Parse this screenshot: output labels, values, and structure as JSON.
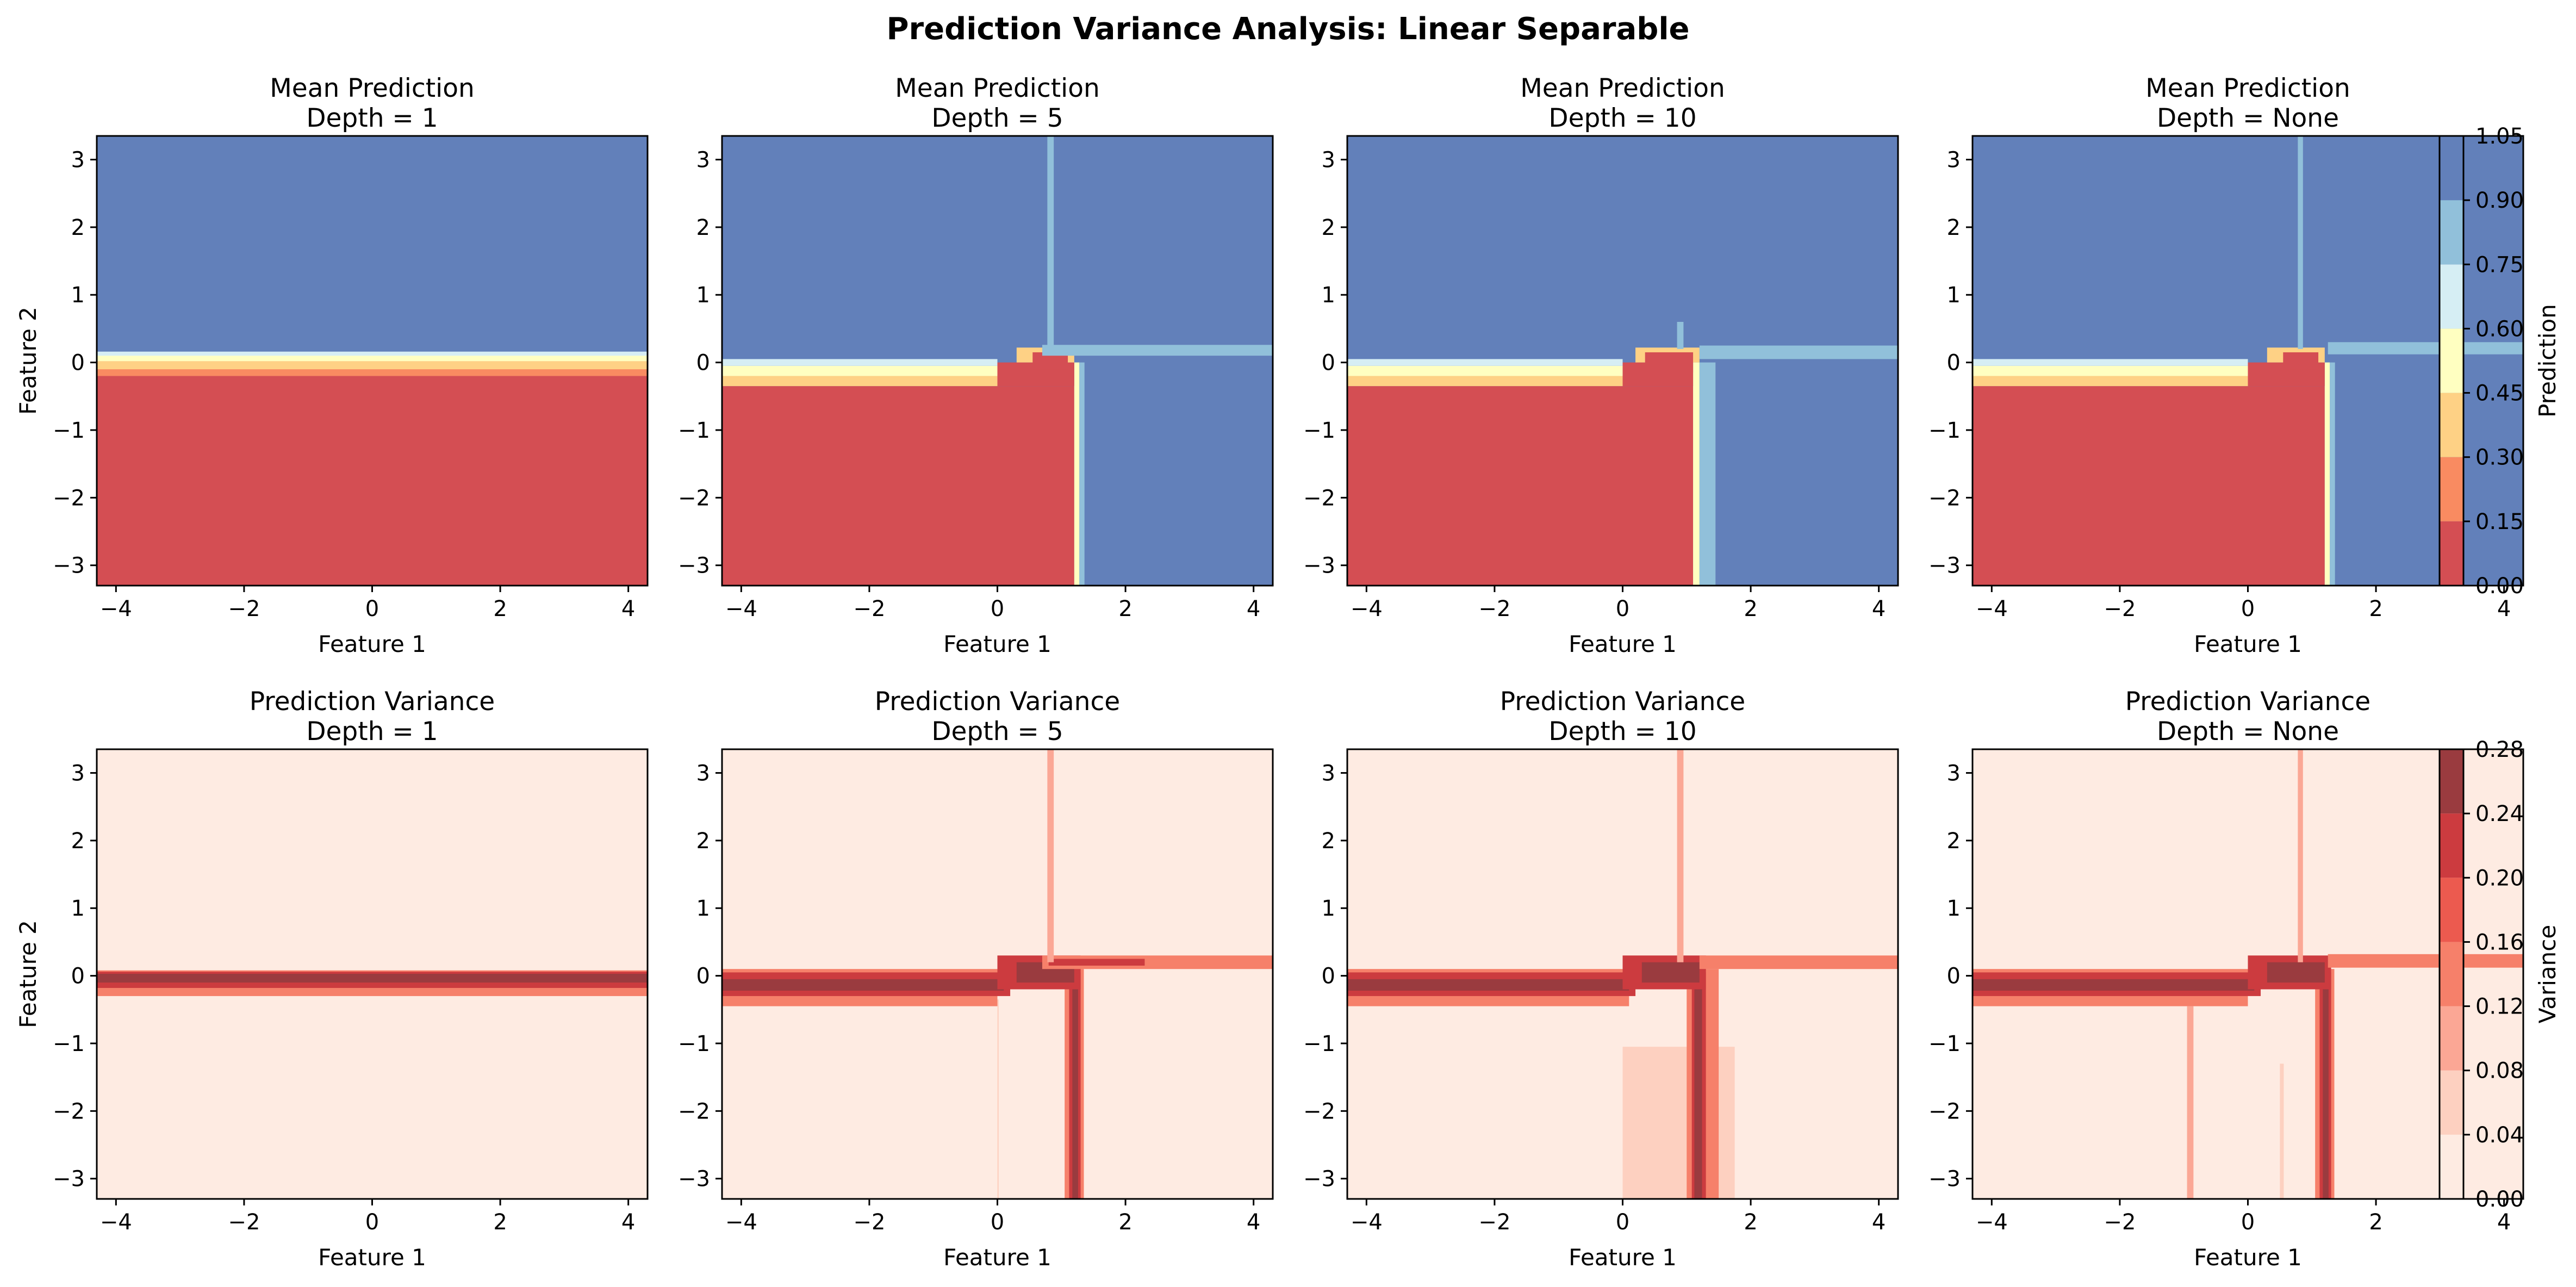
{
  "figure": {
    "title": "Prediction Variance Analysis: Linear Separable"
  },
  "chart_data": [
    {
      "type": "heatmap",
      "title": "Mean Prediction\nDepth = 1",
      "xlabel": "Feature 1",
      "ylabel": "Feature 2",
      "xlim": [
        -4.3,
        4.3
      ],
      "ylim": [
        -3.3,
        3.35
      ],
      "xticks": [
        -4,
        -2,
        0,
        2,
        4
      ],
      "yticks": [
        -3,
        -2,
        -1,
        0,
        1,
        2,
        3
      ],
      "regions": [
        {
          "x0": -4.3,
          "x1": 4.3,
          "y0": -3.3,
          "y1": -0.2,
          "value": 0.0
        },
        {
          "x0": -4.3,
          "x1": 4.3,
          "y0": -0.2,
          "y1": -0.1,
          "value": 0.2
        },
        {
          "x0": -4.3,
          "x1": 4.3,
          "y0": -0.1,
          "y1": 0.02,
          "value": 0.35
        },
        {
          "x0": -4.3,
          "x1": 4.3,
          "y0": 0.02,
          "y1": 0.1,
          "value": 0.5
        },
        {
          "x0": -4.3,
          "x1": 4.3,
          "y0": 0.1,
          "y1": 0.16,
          "value": 0.65
        },
        {
          "x0": -4.3,
          "x1": 4.3,
          "y0": 0.16,
          "y1": 3.35,
          "value": 1.0
        }
      ]
    },
    {
      "type": "heatmap",
      "title": "Mean Prediction\nDepth = 5",
      "xlabel": "Feature 1",
      "ylabel": "",
      "xlim": [
        -4.3,
        4.3
      ],
      "ylim": [
        -3.3,
        3.35
      ],
      "xticks": [
        -4,
        -2,
        0,
        2,
        4
      ],
      "yticks": [
        -3,
        -2,
        -1,
        0,
        1,
        2,
        3
      ],
      "regions": [
        {
          "x0": -4.3,
          "x1": 4.3,
          "y0": -3.3,
          "y1": 3.35,
          "value": 1.0
        },
        {
          "x0": -4.3,
          "x1": 1.2,
          "y0": -3.3,
          "y1": -0.35,
          "value": 0.0
        },
        {
          "x0": -4.3,
          "x1": 0.0,
          "y0": -0.35,
          "y1": -0.2,
          "value": 0.35
        },
        {
          "x0": -4.3,
          "x1": 0.0,
          "y0": -0.2,
          "y1": -0.05,
          "value": 0.55
        },
        {
          "x0": -4.3,
          "x1": 0.0,
          "y0": -0.05,
          "y1": 0.05,
          "value": 0.7
        },
        {
          "x0": 1.2,
          "x1": 1.28,
          "y0": -3.3,
          "y1": 0.0,
          "value": 0.5
        },
        {
          "x0": 1.28,
          "x1": 1.36,
          "y0": -3.3,
          "y1": 0.0,
          "value": 0.75
        },
        {
          "x0": 0.0,
          "x1": 1.2,
          "y0": -0.35,
          "y1": 0.0,
          "value": 0.0
        },
        {
          "x0": 0.3,
          "x1": 1.2,
          "y0": 0.0,
          "y1": 0.22,
          "value": 0.35
        },
        {
          "x0": 0.55,
          "x1": 1.1,
          "y0": -0.1,
          "y1": 0.15,
          "value": 0.05
        },
        {
          "x0": 0.7,
          "x1": 4.3,
          "y0": 0.1,
          "y1": 0.26,
          "value": 0.8
        },
        {
          "x0": 0.78,
          "x1": 0.88,
          "y0": 0.2,
          "y1": 3.35,
          "value": 0.82
        }
      ]
    },
    {
      "type": "heatmap",
      "title": "Mean Prediction\nDepth = 10",
      "xlabel": "Feature 1",
      "ylabel": "",
      "xlim": [
        -4.3,
        4.3
      ],
      "ylim": [
        -3.3,
        3.35
      ],
      "xticks": [
        -4,
        -2,
        0,
        2,
        4
      ],
      "yticks": [
        -3,
        -2,
        -1,
        0,
        1,
        2,
        3
      ],
      "regions": [
        {
          "x0": -4.3,
          "x1": 4.3,
          "y0": -3.3,
          "y1": 3.35,
          "value": 1.0
        },
        {
          "x0": -4.3,
          "x1": 1.1,
          "y0": -3.3,
          "y1": -0.35,
          "value": 0.0
        },
        {
          "x0": -4.3,
          "x1": 0.0,
          "y0": -0.35,
          "y1": -0.2,
          "value": 0.35
        },
        {
          "x0": -4.3,
          "x1": 0.0,
          "y0": -0.2,
          "y1": -0.05,
          "value": 0.55
        },
        {
          "x0": -4.3,
          "x1": 0.0,
          "y0": -0.05,
          "y1": 0.05,
          "value": 0.7
        },
        {
          "x0": 1.1,
          "x1": 1.2,
          "y0": -3.3,
          "y1": 0.0,
          "value": 0.5
        },
        {
          "x0": 1.2,
          "x1": 1.45,
          "y0": -3.3,
          "y1": 0.0,
          "value": 0.78
        },
        {
          "x0": 0.0,
          "x1": 1.1,
          "y0": -0.35,
          "y1": 0.0,
          "value": 0.0
        },
        {
          "x0": 0.2,
          "x1": 1.2,
          "y0": 0.0,
          "y1": 0.22,
          "value": 0.35
        },
        {
          "x0": 0.35,
          "x1": 1.1,
          "y0": -0.15,
          "y1": 0.15,
          "value": 0.05
        },
        {
          "x0": 1.2,
          "x1": 4.3,
          "y0": 0.05,
          "y1": 0.25,
          "value": 0.8
        },
        {
          "x0": 0.85,
          "x1": 0.95,
          "y0": 0.2,
          "y1": 0.6,
          "value": 0.82
        }
      ]
    },
    {
      "type": "heatmap",
      "title": "Mean Prediction\nDepth = None",
      "xlabel": "Feature 1",
      "ylabel": "",
      "xlim": [
        -4.3,
        4.3
      ],
      "ylim": [
        -3.3,
        3.35
      ],
      "xticks": [
        -4,
        -2,
        0,
        2,
        4
      ],
      "yticks": [
        -3,
        -2,
        -1,
        0,
        1,
        2,
        3
      ],
      "regions": [
        {
          "x0": -4.3,
          "x1": 4.3,
          "y0": -3.3,
          "y1": 3.35,
          "value": 1.0
        },
        {
          "x0": -4.3,
          "x1": 1.2,
          "y0": -3.3,
          "y1": -0.35,
          "value": 0.0
        },
        {
          "x0": -4.3,
          "x1": 0.0,
          "y0": -0.35,
          "y1": -0.2,
          "value": 0.35
        },
        {
          "x0": -4.3,
          "x1": 0.0,
          "y0": -0.2,
          "y1": -0.05,
          "value": 0.55
        },
        {
          "x0": -4.3,
          "x1": 0.0,
          "y0": -0.05,
          "y1": 0.05,
          "value": 0.7
        },
        {
          "x0": 1.2,
          "x1": 1.28,
          "y0": -3.3,
          "y1": 0.0,
          "value": 0.5
        },
        {
          "x0": 1.28,
          "x1": 1.36,
          "y0": -3.3,
          "y1": 0.0,
          "value": 0.75
        },
        {
          "x0": 0.0,
          "x1": 1.2,
          "y0": -0.35,
          "y1": 0.0,
          "value": 0.0
        },
        {
          "x0": 0.3,
          "x1": 1.2,
          "y0": 0.0,
          "y1": 0.22,
          "value": 0.35
        },
        {
          "x0": 0.55,
          "x1": 1.1,
          "y0": -0.1,
          "y1": 0.15,
          "value": 0.05
        },
        {
          "x0": 1.25,
          "x1": 4.3,
          "y0": 0.12,
          "y1": 0.3,
          "value": 0.8
        },
        {
          "x0": 0.78,
          "x1": 0.86,
          "y0": 0.2,
          "y1": 3.35,
          "value": 0.82
        }
      ]
    },
    {
      "type": "heatmap",
      "title": "Prediction Variance\nDepth = 1",
      "xlabel": "Feature 1",
      "ylabel": "Feature 2",
      "xlim": [
        -4.3,
        4.3
      ],
      "ylim": [
        -3.3,
        3.35
      ],
      "xticks": [
        -4,
        -2,
        0,
        2,
        4
      ],
      "yticks": [
        -3,
        -2,
        -1,
        0,
        1,
        2,
        3
      ],
      "regions": [
        {
          "x0": -4.3,
          "x1": 4.3,
          "y0": -3.3,
          "y1": 3.35,
          "value": 0.0
        },
        {
          "x0": -4.3,
          "x1": 4.3,
          "y0": -0.3,
          "y1": 0.08,
          "value": 0.13
        },
        {
          "x0": -4.3,
          "x1": 4.3,
          "y0": -0.18,
          "y1": 0.06,
          "value": 0.21
        },
        {
          "x0": -4.3,
          "x1": 4.3,
          "y0": -0.1,
          "y1": 0.03,
          "value": 0.25
        }
      ]
    },
    {
      "type": "heatmap",
      "title": "Prediction Variance\nDepth = 5",
      "xlabel": "Feature 1",
      "ylabel": "",
      "xlim": [
        -4.3,
        4.3
      ],
      "ylim": [
        -3.3,
        3.35
      ],
      "xticks": [
        -4,
        -2,
        0,
        2,
        4
      ],
      "yticks": [
        -3,
        -2,
        -1,
        0,
        1,
        2,
        3
      ],
      "regions": [
        {
          "x0": -4.3,
          "x1": 4.3,
          "y0": -3.3,
          "y1": 3.35,
          "value": 0.0
        },
        {
          "x0": -4.3,
          "x1": 0.0,
          "y0": -0.45,
          "y1": 0.1,
          "value": 0.13
        },
        {
          "x0": -4.3,
          "x1": 0.2,
          "y0": -0.3,
          "y1": 0.05,
          "value": 0.21
        },
        {
          "x0": -4.3,
          "x1": 0.1,
          "y0": -0.22,
          "y1": -0.05,
          "value": 0.25
        },
        {
          "x0": 1.05,
          "x1": 1.35,
          "y0": -3.3,
          "y1": 0.1,
          "value": 0.13
        },
        {
          "x0": 1.12,
          "x1": 1.3,
          "y0": -3.3,
          "y1": 0.05,
          "value": 0.21
        },
        {
          "x0": 1.17,
          "x1": 1.26,
          "y0": -3.3,
          "y1": 0.0,
          "value": 0.25
        },
        {
          "x0": 0.0,
          "x1": 1.3,
          "y0": -0.2,
          "y1": 0.3,
          "value": 0.21
        },
        {
          "x0": 0.3,
          "x1": 1.2,
          "y0": -0.1,
          "y1": 0.2,
          "value": 0.25
        },
        {
          "x0": 0.7,
          "x1": 4.3,
          "y0": 0.1,
          "y1": 0.3,
          "value": 0.13
        },
        {
          "x0": 0.8,
          "x1": 2.3,
          "y0": 0.15,
          "y1": 0.25,
          "value": 0.21
        },
        {
          "x0": 0.78,
          "x1": 0.88,
          "y0": 0.2,
          "y1": 3.35,
          "value": 0.1
        },
        {
          "x0": 0.0,
          "x1": 0.02,
          "y0": -3.3,
          "y1": -0.35,
          "value": 0.05
        }
      ]
    },
    {
      "type": "heatmap",
      "title": "Prediction Variance\nDepth = 10",
      "xlabel": "Feature 1",
      "ylabel": "",
      "xlim": [
        -4.3,
        4.3
      ],
      "ylim": [
        -3.3,
        3.35
      ],
      "xticks": [
        -4,
        -2,
        0,
        2,
        4
      ],
      "yticks": [
        -3,
        -2,
        -1,
        0,
        1,
        2,
        3
      ],
      "regions": [
        {
          "x0": -4.3,
          "x1": 4.3,
          "y0": -3.3,
          "y1": 3.35,
          "value": 0.0
        },
        {
          "x0": -4.3,
          "x1": -0.95,
          "y0": -0.75,
          "y1": -0.3,
          "value": 0.03
        },
        {
          "x0": 0.0,
          "x1": 1.75,
          "y0": -3.3,
          "y1": -1.05,
          "value": 0.05
        },
        {
          "x0": -4.3,
          "x1": 0.1,
          "y0": -0.45,
          "y1": 0.1,
          "value": 0.13
        },
        {
          "x0": -4.3,
          "x1": 0.2,
          "y0": -0.3,
          "y1": 0.05,
          "value": 0.21
        },
        {
          "x0": -4.3,
          "x1": 0.1,
          "y0": -0.22,
          "y1": -0.05,
          "value": 0.25
        },
        {
          "x0": 1.0,
          "x1": 1.5,
          "y0": -3.3,
          "y1": 0.1,
          "value": 0.13
        },
        {
          "x0": 1.08,
          "x1": 1.3,
          "y0": -3.3,
          "y1": 0.05,
          "value": 0.21
        },
        {
          "x0": 1.12,
          "x1": 1.24,
          "y0": -3.3,
          "y1": 0.0,
          "value": 0.25
        },
        {
          "x0": 0.0,
          "x1": 1.3,
          "y0": -0.2,
          "y1": 0.3,
          "value": 0.21
        },
        {
          "x0": 0.3,
          "x1": 1.2,
          "y0": -0.1,
          "y1": 0.2,
          "value": 0.25
        },
        {
          "x0": 1.2,
          "x1": 4.3,
          "y0": 0.1,
          "y1": 0.3,
          "value": 0.13
        },
        {
          "x0": 0.85,
          "x1": 0.95,
          "y0": 0.2,
          "y1": 3.35,
          "value": 0.1
        }
      ]
    },
    {
      "type": "heatmap",
      "title": "Prediction Variance\nDepth = None",
      "xlabel": "Feature 1",
      "ylabel": "",
      "xlim": [
        -4.3,
        4.3
      ],
      "ylim": [
        -3.3,
        3.35
      ],
      "xticks": [
        -4,
        -2,
        0,
        2,
        4
      ],
      "yticks": [
        -3,
        -2,
        -1,
        0,
        1,
        2,
        3
      ],
      "regions": [
        {
          "x0": -4.3,
          "x1": 4.3,
          "y0": -3.3,
          "y1": 3.35,
          "value": 0.0
        },
        {
          "x0": -4.3,
          "x1": 0.0,
          "y0": -0.45,
          "y1": 0.1,
          "value": 0.13
        },
        {
          "x0": -4.3,
          "x1": 0.2,
          "y0": -0.3,
          "y1": 0.05,
          "value": 0.21
        },
        {
          "x0": -4.3,
          "x1": 0.1,
          "y0": -0.22,
          "y1": -0.05,
          "value": 0.25
        },
        {
          "x0": 1.05,
          "x1": 1.35,
          "y0": -3.3,
          "y1": 0.1,
          "value": 0.13
        },
        {
          "x0": 1.12,
          "x1": 1.3,
          "y0": -3.3,
          "y1": 0.05,
          "value": 0.21
        },
        {
          "x0": 1.17,
          "x1": 1.26,
          "y0": -3.3,
          "y1": 0.0,
          "value": 0.25
        },
        {
          "x0": 0.0,
          "x1": 1.3,
          "y0": -0.2,
          "y1": 0.3,
          "value": 0.21
        },
        {
          "x0": 0.3,
          "x1": 1.2,
          "y0": -0.1,
          "y1": 0.2,
          "value": 0.25
        },
        {
          "x0": 1.25,
          "x1": 4.3,
          "y0": 0.12,
          "y1": 0.32,
          "value": 0.13
        },
        {
          "x0": 0.78,
          "x1": 0.86,
          "y0": 0.2,
          "y1": 3.35,
          "value": 0.1
        },
        {
          "x0": -0.95,
          "x1": -0.85,
          "y0": -3.3,
          "y1": -0.45,
          "value": 0.1
        },
        {
          "x0": 0.5,
          "x1": 0.56,
          "y0": -3.3,
          "y1": -1.3,
          "value": 0.05
        }
      ]
    }
  ],
  "colorbars": [
    {
      "label": "Prediction",
      "levels": [
        0.0,
        0.15,
        0.3,
        0.45,
        0.6,
        0.75,
        0.9,
        1.05
      ],
      "ticks": [
        "0.00",
        "0.15",
        "0.30",
        "0.45",
        "0.60",
        "0.75",
        "0.90",
        "1.05"
      ],
      "colors": [
        "#d44e53",
        "#f98b61",
        "#fed185",
        "#ffffc1",
        "#d6eef4",
        "#91c0da",
        "#6280ba"
      ]
    },
    {
      "label": "Variance",
      "levels": [
        0.0,
        0.04,
        0.08,
        0.12,
        0.16,
        0.2,
        0.24,
        0.28
      ],
      "ticks": [
        "0.00",
        "0.04",
        "0.08",
        "0.12",
        "0.16",
        "0.20",
        "0.24",
        "0.28"
      ],
      "colors": [
        "#feebe2",
        "#fdd0c0",
        "#fba795",
        "#f6806a",
        "#ec5a4f",
        "#cc3b3f",
        "#9a3b3f"
      ]
    }
  ]
}
